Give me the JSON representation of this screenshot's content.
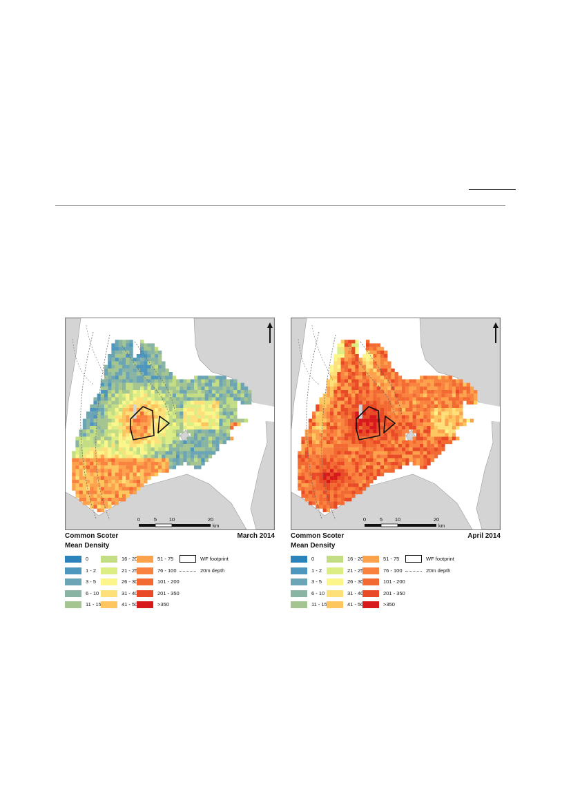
{
  "maps": [
    {
      "species": "Common Scoter",
      "period": "March 2014",
      "legend_title": "Mean Density",
      "scale": {
        "ticks": [
          "0",
          "5",
          "10",
          "20"
        ],
        "unit": "km"
      },
      "palette": "march"
    },
    {
      "species": "Common Scoter",
      "period": "April 2014",
      "legend_title": "Mean Density",
      "scale": {
        "ticks": [
          "0",
          "5",
          "10",
          "20"
        ],
        "unit": "km"
      },
      "palette": "april"
    }
  ],
  "legend": {
    "classes": [
      {
        "label": "0",
        "color": "#2b83ba"
      },
      {
        "label": "1 - 2",
        "color": "#4d97be"
      },
      {
        "label": "3 - 5",
        "color": "#6ba5b5"
      },
      {
        "label": "6 - 10",
        "color": "#88b4a4"
      },
      {
        "label": "11 - 15",
        "color": "#a4c58f"
      },
      {
        "label": "16 - 20",
        "color": "#c2dd84"
      },
      {
        "label": "21 - 25",
        "color": "#dcee83"
      },
      {
        "label": "26 - 30",
        "color": "#fbf58a"
      },
      {
        "label": "31 - 40",
        "color": "#fde07a"
      },
      {
        "label": "41 - 50",
        "color": "#fdc65e"
      },
      {
        "label": "51 - 75",
        "color": "#fca24d"
      },
      {
        "label": "76 - 100",
        "color": "#f9833e"
      },
      {
        "label": "101 - 200",
        "color": "#f26a32"
      },
      {
        "label": "201 - 350",
        "color": "#e84a26"
      },
      {
        "label": ">350",
        "color": "#d7191c"
      }
    ],
    "footprint_label": "WF footprint",
    "depth_label": "20m depth"
  },
  "colors": {
    "land": "#d4d4d4",
    "sea": "#ffffff",
    "outline": "#111111"
  }
}
